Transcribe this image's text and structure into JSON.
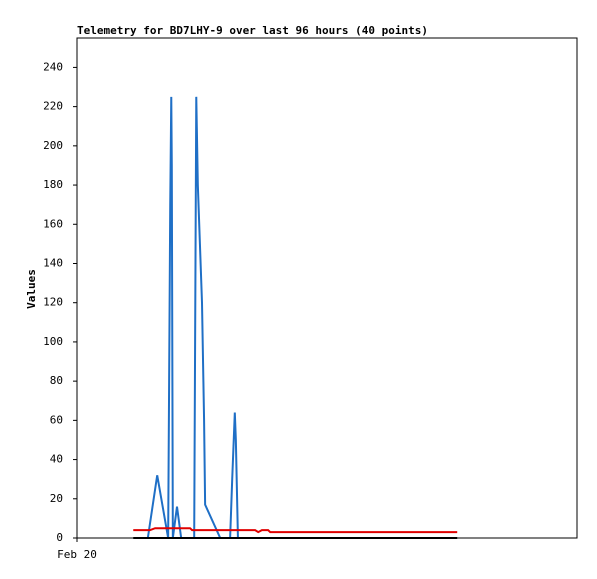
{
  "chart_data": {
    "type": "line",
    "title": "Telemetry for BD7LHY-9 over last 96 hours (40 points)",
    "y_label": "Values",
    "xlim": [
      0,
      96
    ],
    "xticks": [
      {
        "value": 0,
        "label": "Feb 20"
      }
    ],
    "ylim": [
      0,
      255
    ],
    "yticks": [
      0,
      20,
      40,
      60,
      80,
      100,
      120,
      140,
      160,
      180,
      200,
      220,
      240
    ],
    "grid": false,
    "series": [
      {
        "color": "#1f6fc6",
        "x": [
          13.6,
          15.4,
          17.5,
          17.9,
          18.1,
          18.2,
          18.4,
          19.2,
          20.0,
          22.5,
          22.9,
          23.2,
          23.6,
          24.0,
          24.4,
          24.6,
          27.5,
          29.4,
          29.8,
          30.3,
          30.5,
          30.9
        ],
        "values": [
          0,
          32,
          0,
          170,
          225,
          190,
          0,
          16,
          0,
          0,
          225,
          180,
          150,
          120,
          60,
          17,
          0,
          0,
          30,
          64,
          50,
          0
        ]
      },
      {
        "color": "#e00000",
        "x": [
          10.8,
          14.0,
          15.0,
          21.7,
          22.1,
          34.2,
          34.8,
          35.5,
          36.7,
          37.1,
          73.0
        ],
        "values": [
          4,
          4,
          5,
          5,
          4,
          4,
          3,
          4,
          4,
          3,
          3
        ]
      },
      {
        "color": "#000000",
        "x": [
          10.8,
          73.0
        ],
        "values": [
          0,
          0
        ]
      }
    ]
  }
}
